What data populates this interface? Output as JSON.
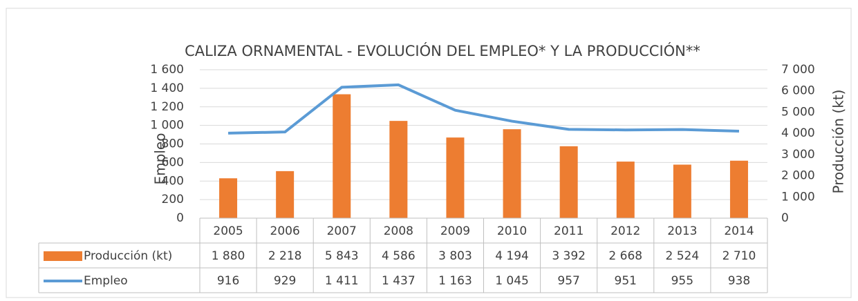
{
  "chart_data": {
    "type": "bar",
    "title": "CALIZA ORNAMENTAL - EVOLUCIÓN DEL EMPLEO* Y LA PRODUCCIÓN**",
    "y_label": "Empleo",
    "y2_label": "Producción (kt)",
    "categories": [
      "2005",
      "2006",
      "2007",
      "2008",
      "2009",
      "2010",
      "2011",
      "2012",
      "2013",
      "2014"
    ],
    "series": [
      {
        "name": "Producción (kt)",
        "type": "bar",
        "axis": "y2",
        "color": "#ed7d31",
        "values": [
          1880,
          2218,
          5843,
          4586,
          3803,
          4194,
          3392,
          2668,
          2524,
          2710
        ],
        "value_labels": [
          "1 880",
          "2 218",
          "5 843",
          "4 586",
          "3 803",
          "4 194",
          "3 392",
          "2 668",
          "2 524",
          "2 710"
        ]
      },
      {
        "name": "Empleo",
        "type": "line",
        "axis": "y",
        "color": "#5b9bd5",
        "values": [
          916,
          929,
          1411,
          1437,
          1163,
          1045,
          957,
          951,
          955,
          938
        ],
        "value_labels": [
          "916",
          "929",
          "1 411",
          "1 437",
          "1 163",
          "1 045",
          "957",
          "951",
          "955",
          "938"
        ]
      }
    ],
    "ylim": [
      0,
      1600
    ],
    "yticks": [
      0,
      200,
      400,
      600,
      800,
      {
        "value": 1000,
        "label": "1 000"
      },
      {
        "value": 1200,
        "label": "1 200"
      },
      {
        "value": 1400,
        "label": "1 400"
      },
      {
        "value": 1600,
        "label": "1 600"
      }
    ],
    "y2lim": [
      0,
      7000
    ],
    "y2ticks": [
      0,
      {
        "value": 1000,
        "label": "1 000"
      },
      {
        "value": 2000,
        "label": "2 000"
      },
      {
        "value": 3000,
        "label": "3 000"
      },
      {
        "value": 4000,
        "label": "4 000"
      },
      {
        "value": 5000,
        "label": "5 000"
      },
      {
        "value": 6000,
        "label": "6 000"
      },
      {
        "value": 7000,
        "label": "7 000"
      }
    ],
    "grid": true,
    "data_table": true
  }
}
